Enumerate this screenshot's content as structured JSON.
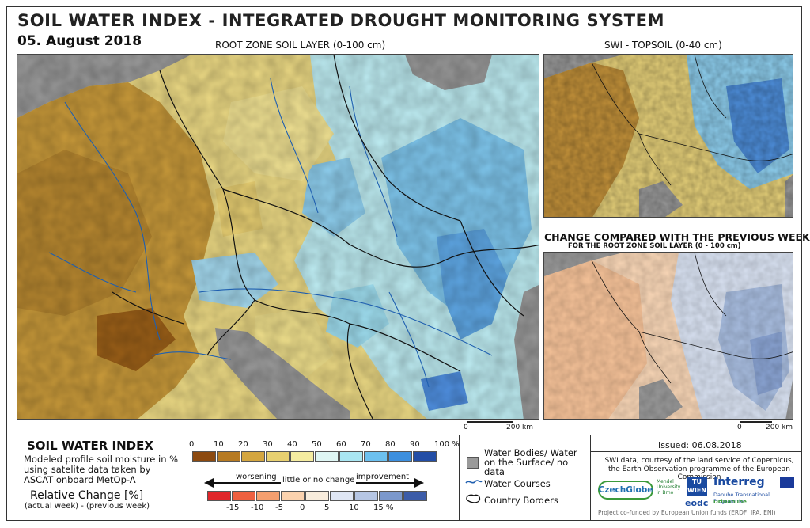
{
  "header": {
    "title": "SOIL WATER INDEX - INTEGRATED DROUGHT MONITORING SYSTEM",
    "date": "05. August 2018"
  },
  "main_map": {
    "label": "ROOT ZONE SOIL LAYER (0-100 cm)"
  },
  "topsoil_map": {
    "label": "SWI - TOPSOIL (0-40 cm)"
  },
  "change_map": {
    "label": "CHANGE COMPARED WITH THE PREVIOUS WEEK",
    "sublabel": "FOR THE ROOT ZONE SOIL LAYER (0 - 100 cm)"
  },
  "scalebar": {
    "zero": "0",
    "distance": "200 km"
  },
  "legend": {
    "swi_title": "SOIL WATER INDEX",
    "swi_desc": "Modeled profile soil moisture in % using satelite data taken by ASCAT onboard MetOp-A",
    "swi_ticks": [
      "0",
      "10",
      "20",
      "30",
      "40",
      "50",
      "60",
      "70",
      "80",
      "90",
      "100 %"
    ],
    "swi_colors": [
      "#8c4a10",
      "#b67a22",
      "#d4a640",
      "#e8d070",
      "#f5eca0",
      "#dff6f4",
      "#a9e6f2",
      "#6cc0ef",
      "#3d8fde",
      "#234ea6"
    ],
    "rel_title": "Relative Change [%]",
    "rel_sub": "(actual week) - (previous week)",
    "worsening": "worsening",
    "nochange": "little or no change",
    "improvement": "improvement",
    "change_ticks": [
      "-15",
      "-10",
      "-5",
      "0",
      "5",
      "10",
      "15 %"
    ],
    "change_colors": [
      "#e0262a",
      "#ee6040",
      "#f59f6f",
      "#fbd2ae",
      "#f8ecdc",
      "#dfe6f4",
      "#b6c6e4",
      "#7b98cc",
      "#3c5ca8"
    ],
    "water_bodies": "Water Bodies/ Water on the Surface/ no data",
    "water_courses": "Water Courses",
    "country_borders": "Country Borders"
  },
  "info": {
    "issued": "Issued: 06.08.2018",
    "credit": "SWI data, courtesy of the land service of Copernicus, the Earth Observation programme of the European Commission",
    "logo_czechglobe": "CzechGlobe",
    "logo_mendel": "Mendel University in Brno",
    "logo_tu": "TU WIEN",
    "logo_eodc": "eodc",
    "logo_interreg": "Interreg",
    "logo_interreg_sub": "Danube Transnational Programme",
    "logo_dridanube": "DriDanube",
    "funded": "Project co-funded by European Union funds (ERDF, IPA, ENI)"
  }
}
